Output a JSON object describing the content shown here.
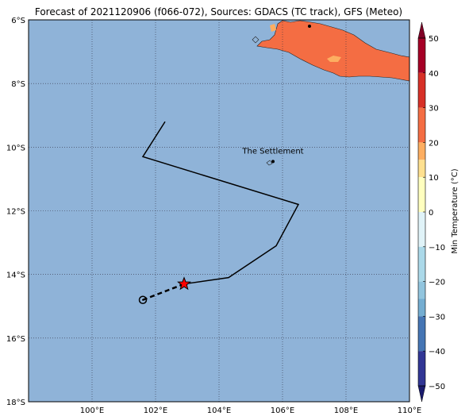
{
  "title": "Forecast of 2021120906 (f066-072), Sources: GDACS (TC track), GFS (Meteo)",
  "map": {
    "lon_range": [
      98,
      110
    ],
    "lat_range": [
      -18,
      -6
    ],
    "lon_ticks": [
      {
        "lon": 100,
        "label": "100°E"
      },
      {
        "lon": 102,
        "label": "102°E"
      },
      {
        "lon": 104,
        "label": "104°E"
      },
      {
        "lon": 106,
        "label": "106°E"
      },
      {
        "lon": 108,
        "label": "108°E"
      },
      {
        "lon": 110,
        "label": "110°E"
      }
    ],
    "lat_ticks": [
      {
        "lat": -6,
        "label": "6°S"
      },
      {
        "lat": -8,
        "label": "8°S"
      },
      {
        "lat": -10,
        "label": "10°S"
      },
      {
        "lat": -12,
        "label": "12°S"
      },
      {
        "lat": -14,
        "label": "14°S"
      },
      {
        "lat": -16,
        "label": "16°S"
      },
      {
        "lat": -18,
        "label": "18°S"
      }
    ],
    "ocean_color": "#8fb3d8",
    "land_color": "#f46d43",
    "land_warm_color": "#fdae61",
    "grid": "dotted",
    "track": [
      {
        "lon": 102.3,
        "lat": -9.2
      },
      {
        "lon": 101.6,
        "lat": -10.3
      },
      {
        "lon": 106.5,
        "lat": -11.8
      },
      {
        "lon": 105.8,
        "lat": -13.1
      },
      {
        "lon": 104.3,
        "lat": -14.1
      },
      {
        "lon": 102.9,
        "lat": -14.3
      }
    ],
    "forecast_track": [
      {
        "lon": 102.9,
        "lat": -14.3
      },
      {
        "lon": 101.6,
        "lat": -14.8
      }
    ],
    "current_position": {
      "lon": 102.9,
      "lat": -14.3,
      "symbol": "red-star"
    },
    "forecast_position": {
      "lon": 101.6,
      "lat": -14.8,
      "symbol": "cyclone-circle"
    },
    "places": [
      {
        "name": "The Settlement",
        "lon": 105.7,
        "lat": -10.45
      },
      {
        "name": "",
        "lon": 106.85,
        "lat": -6.2
      }
    ]
  },
  "colorbar": {
    "label": "Min Temperature (°C)",
    "ticks": [
      50,
      40,
      30,
      20,
      10,
      0,
      -10,
      -20,
      -30,
      -40,
      -50
    ],
    "colors": [
      {
        "from": 40,
        "to": 50,
        "color": "#a50026"
      },
      {
        "from": 30,
        "to": 40,
        "color": "#d73027"
      },
      {
        "from": 25,
        "to": 30,
        "color": "#f46d43"
      },
      {
        "from": 20,
        "to": 25,
        "color": "#f46d43"
      },
      {
        "from": 15,
        "to": 20,
        "color": "#fdae61"
      },
      {
        "from": 10,
        "to": 15,
        "color": "#fee090"
      },
      {
        "from": 0,
        "to": 10,
        "color": "#ffffbf"
      },
      {
        "from": -10,
        "to": 0,
        "color": "#e0f3f8"
      },
      {
        "from": -20,
        "to": -10,
        "color": "#abd9e9"
      },
      {
        "from": -25,
        "to": -20,
        "color": "#92c5de"
      },
      {
        "from": -30,
        "to": -25,
        "color": "#74add1"
      },
      {
        "from": -40,
        "to": -30,
        "color": "#4575b4"
      },
      {
        "from": -50,
        "to": -40,
        "color": "#313695"
      }
    ],
    "extend_top_color": "#800026",
    "extend_bottom_color": "#1a1b6e"
  }
}
